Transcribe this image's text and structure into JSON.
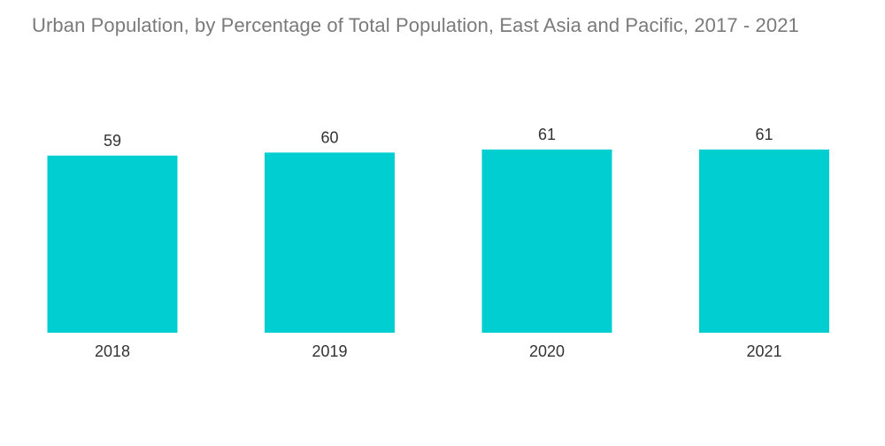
{
  "chart_data": {
    "type": "bar",
    "title": "Urban Population, by Percentage of Total Population, East Asia and Pacific, 2017 - 2021",
    "categories": [
      "2018",
      "2019",
      "2020",
      "2021"
    ],
    "values": [
      59,
      60,
      61,
      61
    ],
    "data_labels": [
      "59",
      "60",
      "61",
      "61"
    ],
    "xlabel": "",
    "ylabel": "",
    "ylim": [
      0,
      61
    ],
    "grid": false,
    "legend": "none",
    "bar_color": "#00CED1"
  }
}
